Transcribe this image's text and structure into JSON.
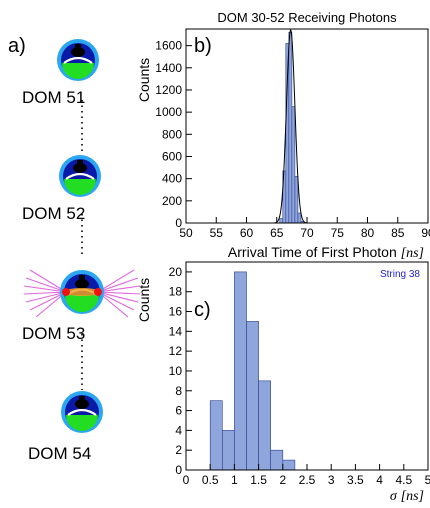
{
  "panel_a": {
    "letter": "a)",
    "doms": [
      {
        "label": "DOM 51",
        "emitting": false
      },
      {
        "label": "DOM 52",
        "emitting": false
      },
      {
        "label": "DOM 53",
        "emitting": true
      },
      {
        "label": "DOM 54",
        "emitting": false
      }
    ]
  },
  "colors": {
    "bar_fill": "#8fa6dd",
    "bar_stroke": "#2b3f8c",
    "fit_line": "#000000",
    "annotation": "#2222cc",
    "dom_outer": "#2ba6f0",
    "dom_core": "#0a1aa8",
    "dom_green": "#22dd22",
    "dom_red": "#ee1111",
    "light_rays": "#e066e0"
  },
  "chart_data": [
    {
      "type": "bar",
      "panel_letter": "b)",
      "title": "DOM 30-52 Receiving Photons",
      "xlabel_main": "Arrival Time of First Photon",
      "xlabel_unit": "[ns]",
      "ylabel": "Counts",
      "xlim": [
        50,
        90
      ],
      "ylim": [
        0,
        1750
      ],
      "xticks": [
        "50",
        "55",
        "60",
        "65",
        "70",
        "75",
        "80",
        "85",
        "90"
      ],
      "yticks": [
        "0",
        "200",
        "400",
        "600",
        "800",
        "1000",
        "1200",
        "1400",
        "1600"
      ],
      "bins": [
        {
          "x0": 65.5,
          "x1": 66.0,
          "value": 40
        },
        {
          "x0": 66.0,
          "x1": 66.5,
          "value": 470
        },
        {
          "x0": 66.5,
          "x1": 67.0,
          "value": 1620
        },
        {
          "x0": 67.0,
          "x1": 67.5,
          "value": 1720
        },
        {
          "x0": 67.5,
          "x1": 68.0,
          "value": 1050
        },
        {
          "x0": 68.0,
          "x1": 68.5,
          "value": 420
        },
        {
          "x0": 68.5,
          "x1": 69.0,
          "value": 90
        },
        {
          "x0": 69.0,
          "x1": 69.5,
          "value": 15
        }
      ],
      "fit": {
        "type": "gaussian",
        "mean": 67.3,
        "sigma": 0.7,
        "amplitude": 1740
      }
    },
    {
      "type": "bar",
      "panel_letter": "c)",
      "annotation": "String 38",
      "xlabel_main": "σ",
      "xlabel_unit": "[ns]",
      "ylabel": "Counts",
      "xlim": [
        0,
        5
      ],
      "ylim": [
        0,
        21
      ],
      "xticks": [
        "0",
        "0.5",
        "1",
        "1.5",
        "2",
        "2.5",
        "3",
        "3.5",
        "4",
        "4.5",
        "5"
      ],
      "yticks": [
        "0",
        "2",
        "4",
        "6",
        "8",
        "10",
        "12",
        "14",
        "16",
        "18",
        "20"
      ],
      "bins": [
        {
          "x0": 0.5,
          "x1": 0.75,
          "value": 7
        },
        {
          "x0": 0.75,
          "x1": 1.0,
          "value": 4
        },
        {
          "x0": 1.0,
          "x1": 1.25,
          "value": 20
        },
        {
          "x0": 1.25,
          "x1": 1.5,
          "value": 15
        },
        {
          "x0": 1.5,
          "x1": 1.75,
          "value": 9
        },
        {
          "x0": 1.75,
          "x1": 2.0,
          "value": 2
        },
        {
          "x0": 2.0,
          "x1": 2.25,
          "value": 1
        }
      ]
    }
  ]
}
